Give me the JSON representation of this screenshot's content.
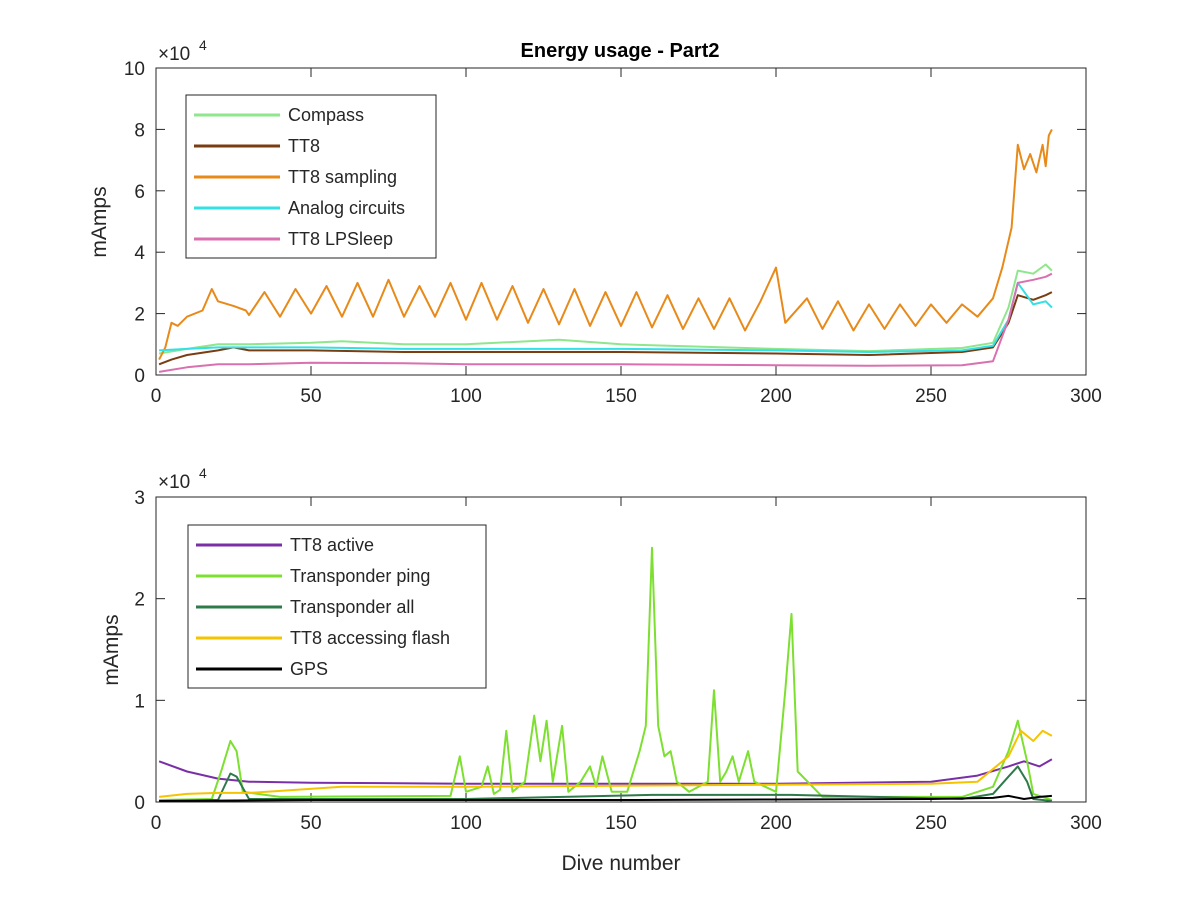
{
  "chart_data": [
    {
      "type": "line",
      "title": "Energy usage - Part2",
      "xlabel": "",
      "ylabel": "mAmps",
      "xlim": [
        0,
        300
      ],
      "ylim": [
        0,
        100000
      ],
      "xticks": [
        0,
        50,
        100,
        150,
        200,
        250,
        300
      ],
      "yticks": [
        0,
        20000,
        40000,
        60000,
        80000,
        100000
      ],
      "ytick_labels": [
        "0",
        "2",
        "4",
        "6",
        "8",
        "10"
      ],
      "xtick_labels": [
        "0",
        "50",
        "100",
        "150",
        "200",
        "250",
        "300"
      ],
      "exponent_label": "×10",
      "exponent_power": "4",
      "legend_position": "top-left",
      "series": [
        {
          "name": "Compass",
          "color": "#8fe68c",
          "points": [
            [
              1,
              7000
            ],
            [
              10,
              8500
            ],
            [
              20,
              10000
            ],
            [
              30,
              10000
            ],
            [
              50,
              10500
            ],
            [
              60,
              11000
            ],
            [
              80,
              10000
            ],
            [
              100,
              10000
            ],
            [
              130,
              11500
            ],
            [
              150,
              10000
            ],
            [
              200,
              8500
            ],
            [
              230,
              7800
            ],
            [
              260,
              8800
            ],
            [
              270,
              10500
            ],
            [
              275,
              22000
            ],
            [
              278,
              34000
            ],
            [
              283,
              33000
            ],
            [
              287,
              36000
            ],
            [
              289,
              34000
            ]
          ]
        },
        {
          "name": "TT8",
          "color": "#7a3d12",
          "points": [
            [
              1,
              3500
            ],
            [
              5,
              5000
            ],
            [
              10,
              6500
            ],
            [
              20,
              8000
            ],
            [
              25,
              9000
            ],
            [
              30,
              8000
            ],
            [
              50,
              8000
            ],
            [
              80,
              7500
            ],
            [
              100,
              7500
            ],
            [
              150,
              7500
            ],
            [
              200,
              7000
            ],
            [
              230,
              6500
            ],
            [
              260,
              7500
            ],
            [
              270,
              9000
            ],
            [
              275,
              17000
            ],
            [
              278,
              26000
            ],
            [
              283,
              24500
            ],
            [
              287,
              26000
            ],
            [
              289,
              27000
            ]
          ]
        },
        {
          "name": "TT8 sampling",
          "color": "#e88a1a",
          "points": [
            [
              1,
              5000
            ],
            [
              3,
              9000
            ],
            [
              5,
              17000
            ],
            [
              7,
              16000
            ],
            [
              10,
              19000
            ],
            [
              15,
              21000
            ],
            [
              18,
              28000
            ],
            [
              20,
              24000
            ],
            [
              25,
              22500
            ],
            [
              29,
              21000
            ],
            [
              30,
              19500
            ],
            [
              35,
              27000
            ],
            [
              40,
              19000
            ],
            [
              45,
              28000
            ],
            [
              50,
              20000
            ],
            [
              55,
              29000
            ],
            [
              60,
              19000
            ],
            [
              65,
              30000
            ],
            [
              70,
              19000
            ],
            [
              75,
              31000
            ],
            [
              80,
              19000
            ],
            [
              85,
              29000
            ],
            [
              90,
              19000
            ],
            [
              95,
              30000
            ],
            [
              100,
              18000
            ],
            [
              105,
              30000
            ],
            [
              110,
              18000
            ],
            [
              115,
              29000
            ],
            [
              120,
              17000
            ],
            [
              125,
              28000
            ],
            [
              130,
              16500
            ],
            [
              135,
              28000
            ],
            [
              140,
              16000
            ],
            [
              145,
              27000
            ],
            [
              150,
              16000
            ],
            [
              155,
              27000
            ],
            [
              160,
              15500
            ],
            [
              165,
              26000
            ],
            [
              170,
              15000
            ],
            [
              175,
              25000
            ],
            [
              180,
              15000
            ],
            [
              185,
              25000
            ],
            [
              190,
              14500
            ],
            [
              195,
              24000
            ],
            [
              200,
              35000
            ],
            [
              203,
              17000
            ],
            [
              210,
              25000
            ],
            [
              215,
              15000
            ],
            [
              220,
              24000
            ],
            [
              225,
              14500
            ],
            [
              230,
              23000
            ],
            [
              235,
              15000
            ],
            [
              240,
              23000
            ],
            [
              245,
              16000
            ],
            [
              250,
              23000
            ],
            [
              255,
              17000
            ],
            [
              260,
              23000
            ],
            [
              265,
              19000
            ],
            [
              270,
              25000
            ],
            [
              273,
              35000
            ],
            [
              276,
              48000
            ],
            [
              278,
              75000
            ],
            [
              280,
              67000
            ],
            [
              282,
              72000
            ],
            [
              284,
              66000
            ],
            [
              286,
              75000
            ],
            [
              287,
              68000
            ],
            [
              288,
              78000
            ],
            [
              289,
              80000
            ]
          ]
        },
        {
          "name": "Analog circuits",
          "color": "#33e0e6",
          "points": [
            [
              1,
              8000
            ],
            [
              10,
              8500
            ],
            [
              20,
              9000
            ],
            [
              30,
              9000
            ],
            [
              50,
              9000
            ],
            [
              80,
              8500
            ],
            [
              100,
              8500
            ],
            [
              150,
              8500
            ],
            [
              200,
              8000
            ],
            [
              230,
              7500
            ],
            [
              260,
              8000
            ],
            [
              270,
              9500
            ],
            [
              275,
              18000
            ],
            [
              278,
              30000
            ],
            [
              283,
              23000
            ],
            [
              287,
              24000
            ],
            [
              289,
              22000
            ]
          ]
        },
        {
          "name": "TT8 LPSleep",
          "color": "#d970b0",
          "points": [
            [
              1,
              1000
            ],
            [
              10,
              2500
            ],
            [
              20,
              3500
            ],
            [
              30,
              3500
            ],
            [
              50,
              4000
            ],
            [
              80,
              3800
            ],
            [
              100,
              3500
            ],
            [
              150,
              3500
            ],
            [
              200,
              3200
            ],
            [
              230,
              3000
            ],
            [
              260,
              3200
            ],
            [
              270,
              4500
            ],
            [
              275,
              18000
            ],
            [
              278,
              30000
            ],
            [
              283,
              31000
            ],
            [
              287,
              32000
            ],
            [
              289,
              33000
            ]
          ]
        }
      ]
    },
    {
      "type": "line",
      "title": "",
      "xlabel": "Dive number",
      "ylabel": "mAmps",
      "xlim": [
        0,
        300
      ],
      "ylim": [
        0,
        30000
      ],
      "xticks": [
        0,
        50,
        100,
        150,
        200,
        250,
        300
      ],
      "yticks": [
        0,
        10000,
        20000,
        30000
      ],
      "ytick_labels": [
        "0",
        "1",
        "2",
        "3"
      ],
      "xtick_labels": [
        "0",
        "50",
        "100",
        "150",
        "200",
        "250",
        "300"
      ],
      "exponent_label": "×10",
      "exponent_power": "4",
      "legend_position": "top-left",
      "series": [
        {
          "name": "TT8 active",
          "color": "#7b2fa6",
          "points": [
            [
              1,
              4000
            ],
            [
              10,
              3000
            ],
            [
              20,
              2300
            ],
            [
              30,
              2000
            ],
            [
              50,
              1900
            ],
            [
              100,
              1800
            ],
            [
              150,
              1800
            ],
            [
              200,
              1800
            ],
            [
              250,
              2000
            ],
            [
              265,
              2600
            ],
            [
              275,
              3500
            ],
            [
              280,
              4000
            ],
            [
              285,
              3500
            ],
            [
              289,
              4200
            ]
          ]
        },
        {
          "name": "Transponder ping",
          "color": "#7de030",
          "points": [
            [
              1,
              200
            ],
            [
              18,
              300
            ],
            [
              21,
              3000
            ],
            [
              24,
              6000
            ],
            [
              26,
              5000
            ],
            [
              28,
              1000
            ],
            [
              40,
              500
            ],
            [
              95,
              600
            ],
            [
              98,
              4500
            ],
            [
              100,
              1000
            ],
            [
              105,
              1500
            ],
            [
              107,
              3500
            ],
            [
              109,
              800
            ],
            [
              111,
              1200
            ],
            [
              113,
              7000
            ],
            [
              115,
              1000
            ],
            [
              119,
              2000
            ],
            [
              122,
              8500
            ],
            [
              124,
              4000
            ],
            [
              126,
              8000
            ],
            [
              128,
              2000
            ],
            [
              131,
              7500
            ],
            [
              133,
              1000
            ],
            [
              137,
              2000
            ],
            [
              140,
              3500
            ],
            [
              142,
              1500
            ],
            [
              144,
              4500
            ],
            [
              147,
              1000
            ],
            [
              152,
              1000
            ],
            [
              156,
              5000
            ],
            [
              158,
              7500
            ],
            [
              160,
              25000
            ],
            [
              162,
              7500
            ],
            [
              164,
              4500
            ],
            [
              166,
              5000
            ],
            [
              168,
              2000
            ],
            [
              172,
              1000
            ],
            [
              178,
              2000
            ],
            [
              180,
              11000
            ],
            [
              182,
              2000
            ],
            [
              184,
              3000
            ],
            [
              186,
              4500
            ],
            [
              188,
              2000
            ],
            [
              191,
              5000
            ],
            [
              193,
              2000
            ],
            [
              200,
              1000
            ],
            [
              203,
              11000
            ],
            [
              205,
              18500
            ],
            [
              207,
              3000
            ],
            [
              215,
              500
            ],
            [
              260,
              500
            ],
            [
              270,
              1500
            ],
            [
              275,
              5000
            ],
            [
              278,
              8000
            ],
            [
              281,
              4000
            ],
            [
              283,
              800
            ],
            [
              289,
              200
            ]
          ]
        },
        {
          "name": "Transponder all",
          "color": "#2e7a4a",
          "points": [
            [
              1,
              100
            ],
            [
              20,
              200
            ],
            [
              24,
              2800
            ],
            [
              26,
              2500
            ],
            [
              30,
              300
            ],
            [
              100,
              300
            ],
            [
              160,
              700
            ],
            [
              205,
              700
            ],
            [
              260,
              300
            ],
            [
              270,
              800
            ],
            [
              275,
              2500
            ],
            [
              278,
              3500
            ],
            [
              281,
              2000
            ],
            [
              283,
              300
            ],
            [
              289,
              100
            ]
          ]
        },
        {
          "name": "TT8 accessing flash",
          "color": "#f5c400",
          "points": [
            [
              1,
              500
            ],
            [
              10,
              800
            ],
            [
              20,
              900
            ],
            [
              30,
              900
            ],
            [
              60,
              1500
            ],
            [
              100,
              1500
            ],
            [
              150,
              1600
            ],
            [
              200,
              1700
            ],
            [
              250,
              1800
            ],
            [
              265,
              2000
            ],
            [
              275,
              4500
            ],
            [
              279,
              7000
            ],
            [
              283,
              6000
            ],
            [
              286,
              7000
            ],
            [
              289,
              6500
            ]
          ]
        },
        {
          "name": "GPS",
          "color": "#000000",
          "points": [
            [
              1,
              100
            ],
            [
              50,
              200
            ],
            [
              100,
              200
            ],
            [
              150,
              200
            ],
            [
              200,
              250
            ],
            [
              250,
              300
            ],
            [
              270,
              400
            ],
            [
              275,
              600
            ],
            [
              280,
              300
            ],
            [
              285,
              500
            ],
            [
              289,
              600
            ]
          ]
        }
      ]
    }
  ]
}
